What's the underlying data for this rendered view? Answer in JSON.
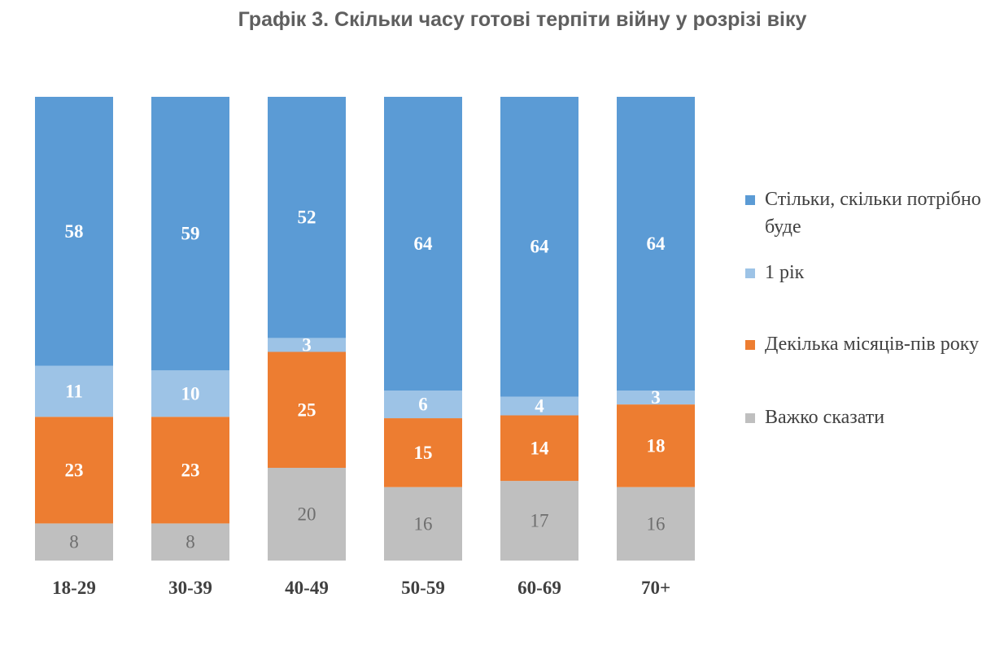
{
  "chart_data": {
    "type": "bar",
    "stacked": true,
    "stack_mode": "percent",
    "title": "Графік 3. Скільки часу готові терпіти війну у розрізі віку",
    "xlabel": "",
    "ylabel": "",
    "ylim": [
      0,
      100
    ],
    "grid": false,
    "legend_position": "right",
    "categories": [
      "18-29",
      "30-39",
      "40-49",
      "50-59",
      "60-69",
      "70+"
    ],
    "series": [
      {
        "name": "Важко сказати",
        "color": "#bfbfbf",
        "values": [
          8,
          8,
          20,
          16,
          17,
          16
        ]
      },
      {
        "name": "Декілька місяців-пів року",
        "color": "#ed7d31",
        "values": [
          23,
          23,
          25,
          15,
          14,
          18
        ]
      },
      {
        "name": "1 рік",
        "color": "#9dc3e6",
        "values": [
          11,
          10,
          3,
          6,
          4,
          3
        ]
      },
      {
        "name": "Стільки, скільки потрібно буде",
        "color": "#5b9bd5",
        "values": [
          58,
          59,
          52,
          64,
          64,
          64
        ]
      }
    ],
    "legend_order": [
      "Стільки, скільки потрібно буде",
      "1 рік",
      "Декілька місяців-пів року",
      "Важко сказати"
    ]
  }
}
